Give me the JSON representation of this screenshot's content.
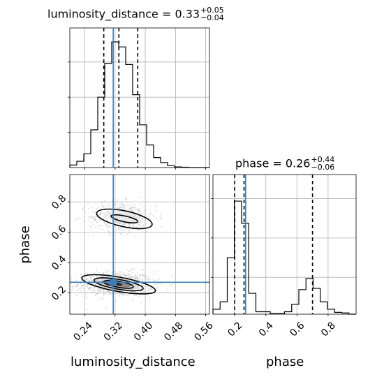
{
  "titles": {
    "top": {
      "text": "luminosity_distance = 0.33",
      "sup": "+0.05",
      "sub": "−0.04"
    },
    "right": {
      "text": "phase = 0.26",
      "sup": "+0.44",
      "sub": "−0.06"
    }
  },
  "axis_labels": {
    "x_left": "luminosity_distance",
    "x_right": "phase",
    "y_left": "phase"
  },
  "colors": {
    "truth": "#3d7fb7",
    "line": "#000000",
    "grid": "#b0b0b0",
    "samples": "#b8b8b8"
  },
  "chart_data": [
    {
      "type": "histogram",
      "panel": "luminosity_distance marginal",
      "title": "luminosity_distance = 0.33 +0.05 -0.04",
      "xlim": [
        0.2,
        0.57
      ],
      "bins_x": [
        0.2,
        0.2185,
        0.237,
        0.2555,
        0.274,
        0.2925,
        0.311,
        0.3295,
        0.348,
        0.3665,
        0.385,
        0.4035,
        0.422,
        0.4405,
        0.459,
        0.4775,
        0.496,
        0.5145,
        0.533,
        0.5515,
        0.57
      ],
      "counts": [
        0.02,
        0.05,
        0.11,
        0.3,
        0.56,
        0.83,
        1.0,
        0.96,
        0.82,
        0.58,
        0.34,
        0.18,
        0.08,
        0.04,
        0.015,
        0.005,
        0.003,
        0,
        0,
        0
      ],
      "quantiles": [
        0.29,
        0.33,
        0.38
      ],
      "truth": 0.315,
      "grid": true
    },
    {
      "type": "histogram",
      "panel": "phase marginal",
      "title": "phase = 0.26 +0.44 -0.06",
      "xlim": [
        0.06,
        0.98
      ],
      "xticks": [
        0.2,
        0.4,
        0.6,
        0.8
      ],
      "xlabel": "phase",
      "bins_x": [
        0.06,
        0.106,
        0.152,
        0.198,
        0.244,
        0.29,
        0.336,
        0.382,
        0.428,
        0.474,
        0.52,
        0.566,
        0.612,
        0.658,
        0.704,
        0.75,
        0.796,
        0.842,
        0.888,
        0.934,
        0.98
      ],
      "counts": [
        0.04,
        0.1,
        0.46,
        0.92,
        0.74,
        0.17,
        0.02,
        0.02,
        0.005,
        0.005,
        0.02,
        0.08,
        0.2,
        0.29,
        0.21,
        0.1,
        0.04,
        0.015,
        0.01,
        0
      ],
      "quantiles": [
        0.2,
        0.26,
        0.7
      ],
      "truth": 0.27,
      "grid": true
    },
    {
      "type": "scatter",
      "panel": "2D posterior",
      "xlim": [
        0.2,
        0.57
      ],
      "ylim": [
        0.06,
        0.98
      ],
      "xticks": [
        0.24,
        0.32,
        0.4,
        0.48,
        0.56
      ],
      "yticks": [
        0.2,
        0.4,
        0.6,
        0.8
      ],
      "xlabel": "luminosity_distance",
      "ylabel": "phase",
      "modes": [
        {
          "center": [
            0.322,
            0.26
          ],
          "spread": [
            0.055,
            0.045
          ],
          "weight": 0.64
        },
        {
          "center": [
            0.34,
            0.7
          ],
          "spread": [
            0.05,
            0.055
          ],
          "weight": 0.36
        }
      ],
      "truth": [
        0.315,
        0.27
      ],
      "grid": true
    }
  ]
}
